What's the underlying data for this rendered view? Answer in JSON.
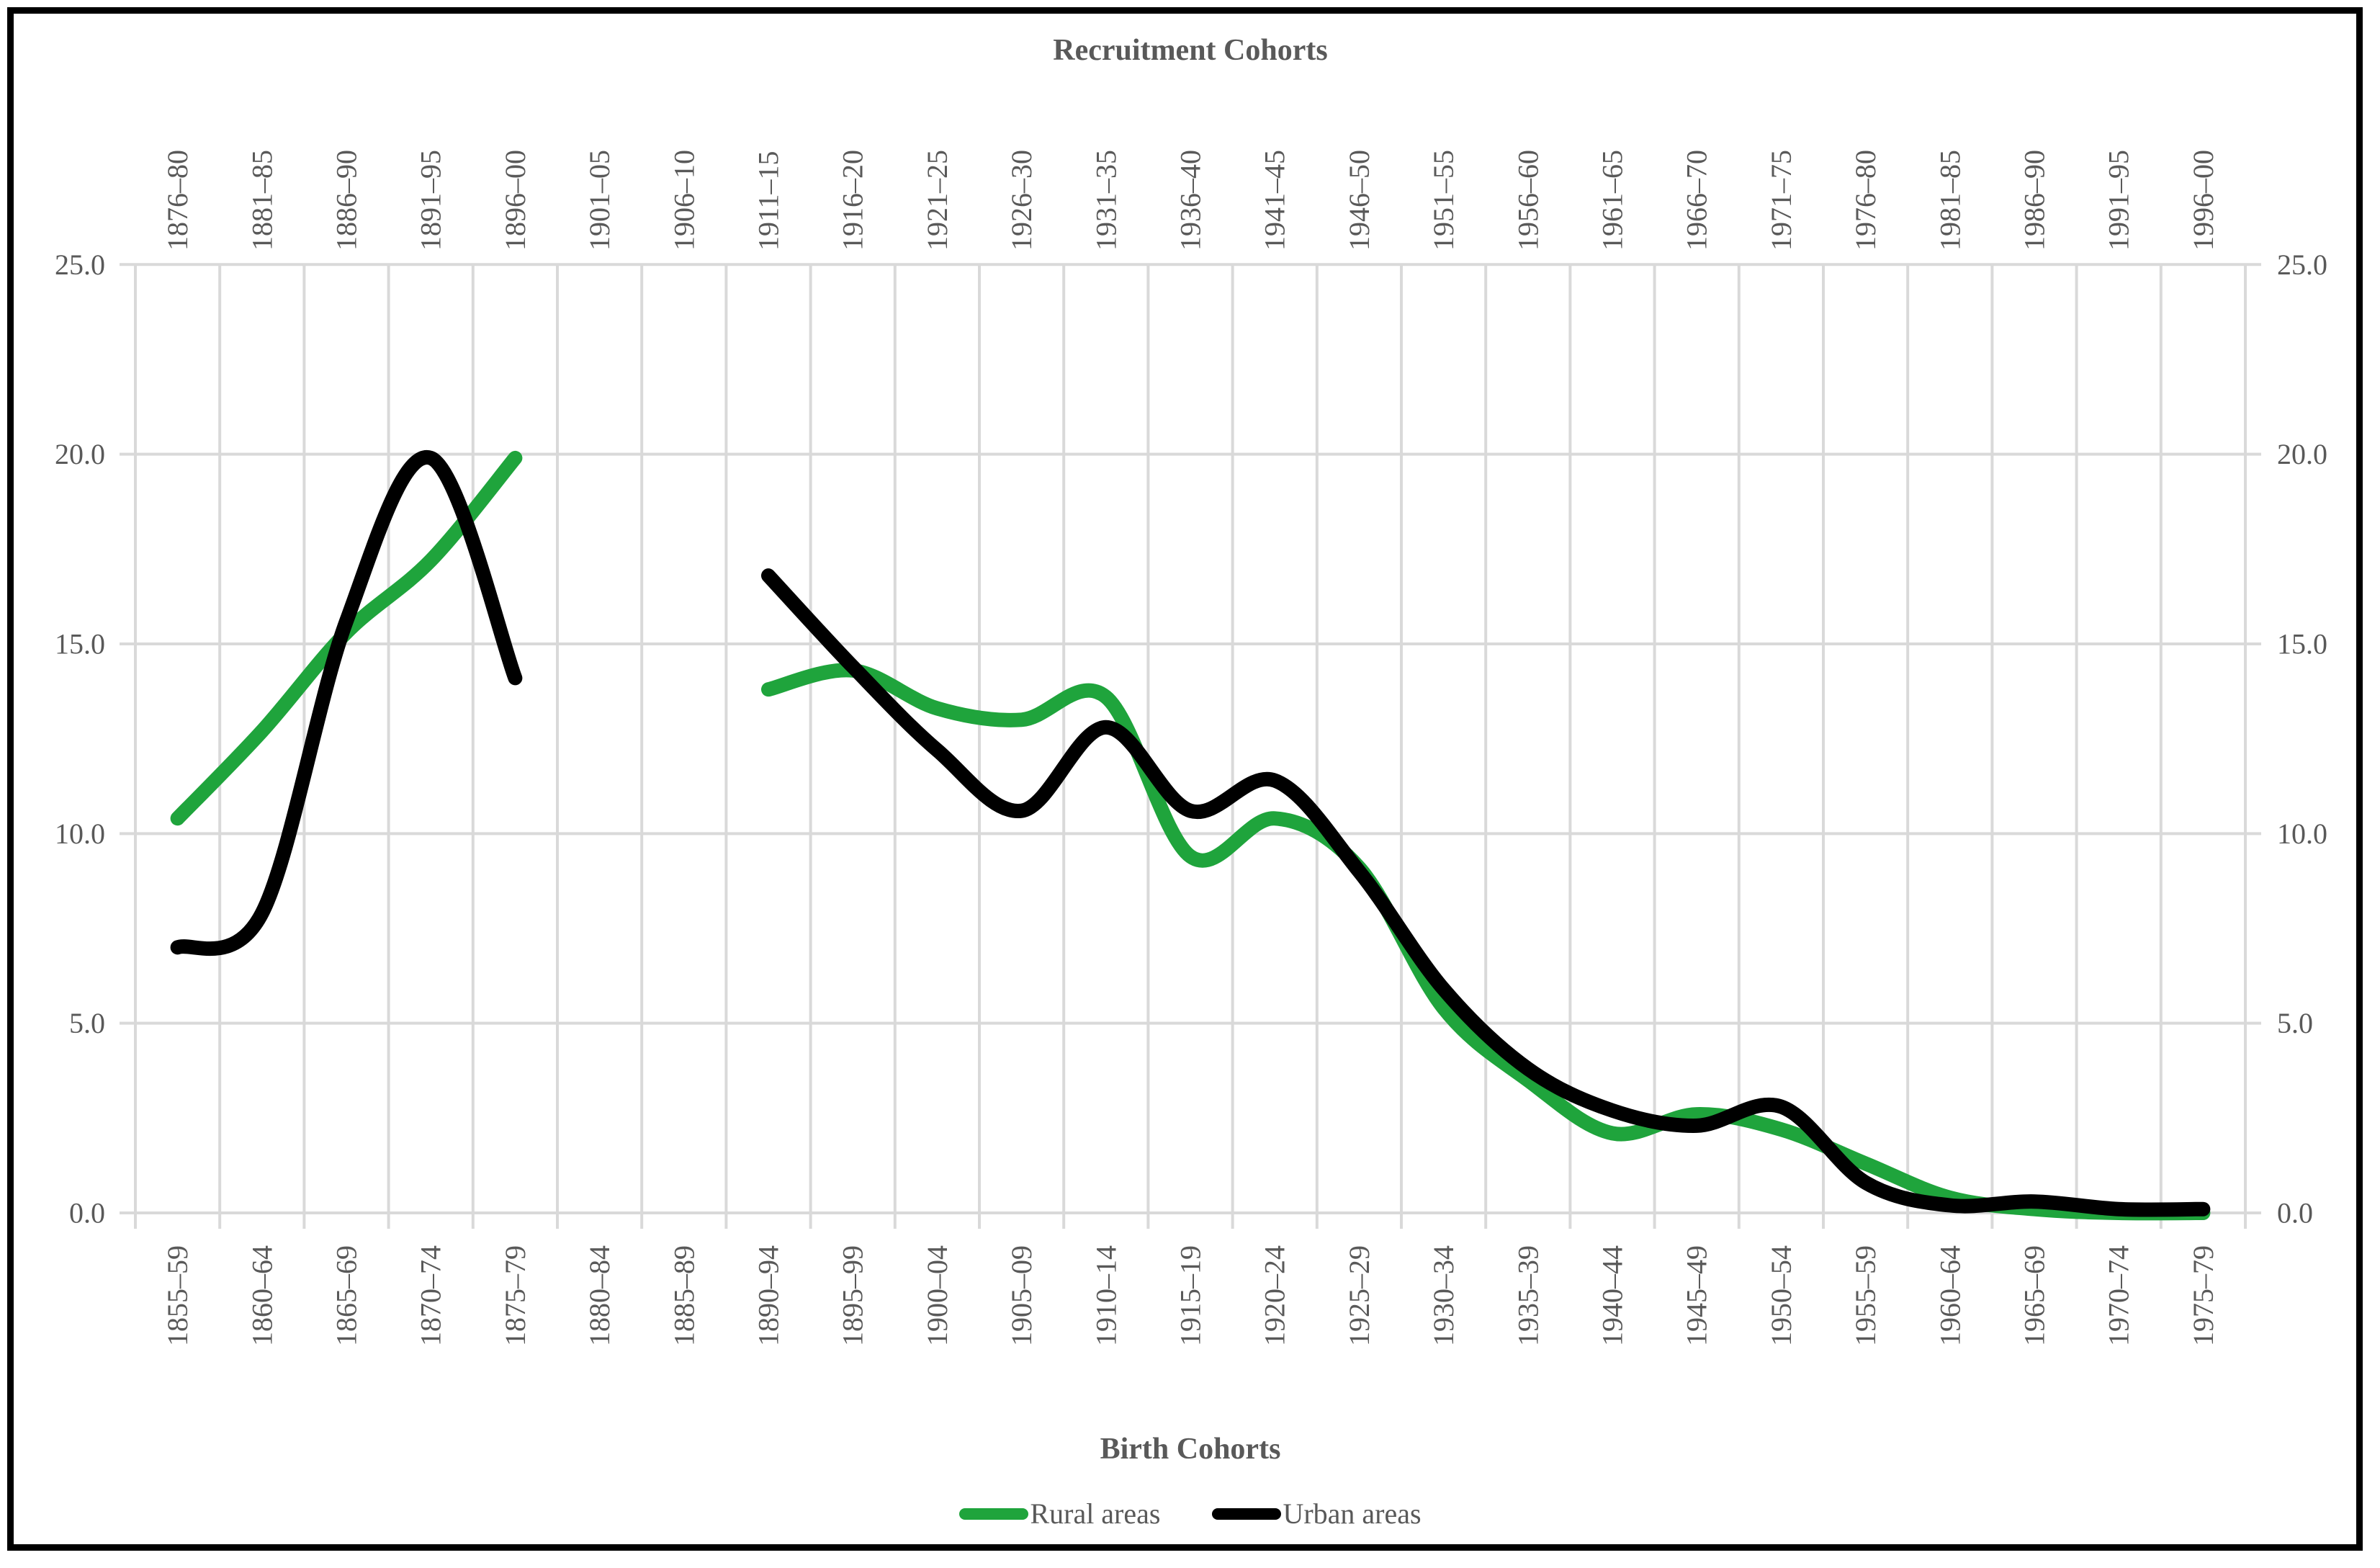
{
  "chart_data": {
    "type": "line",
    "smooth": true,
    "title_top": "Recruitment Cohorts",
    "title_bottom": "Birth Cohorts",
    "recruitment_cohorts": [
      "1876–80",
      "1881–85",
      "1886–90",
      "1891–95",
      "1896–00",
      "1901–05",
      "1906–10",
      "1911–15",
      "1916–20",
      "1921–25",
      "1926–30",
      "1931–35",
      "1936–40",
      "1941–45",
      "1946–50",
      "1951–55",
      "1956–60",
      "1961–65",
      "1966–70",
      "1971–75",
      "1976–80",
      "1981–85",
      "1986–90",
      "1991–95",
      "1996–00"
    ],
    "birth_cohorts": [
      "1855–59",
      "1860–64",
      "1865–69",
      "1870–74",
      "1875–79",
      "1880–84",
      "1885–89",
      "1890–94",
      "1895–99",
      "1900–04",
      "1905–09",
      "1910–14",
      "1915–19",
      "1920–24",
      "1925–29",
      "1930–34",
      "1935–39",
      "1940–44",
      "1945–49",
      "1950–54",
      "1955–59",
      "1960–64",
      "1965–69",
      "1970–74",
      "1975–79"
    ],
    "ylim": [
      0,
      25
    ],
    "yticks": [
      0,
      5,
      10,
      15,
      20,
      25
    ],
    "ytick_labels": [
      "0.0",
      "5.0",
      "10.0",
      "15.0",
      "20.0",
      "25.0"
    ],
    "grid": true,
    "legend_position": "bottom-center",
    "series": [
      {
        "name": "Rural areas",
        "color": "#1FA43C",
        "values": [
          10.4,
          12.7,
          15.3,
          17.2,
          19.9,
          null,
          null,
          13.8,
          14.3,
          13.3,
          13.0,
          13.6,
          9.4,
          10.4,
          9.1,
          5.4,
          3.5,
          2.1,
          2.6,
          2.2,
          1.3,
          0.4,
          0.1,
          0.0,
          0.0
        ]
      },
      {
        "name": "Urban areas",
        "color": "#000000",
        "values": [
          7.0,
          7.9,
          15.6,
          19.9,
          14.1,
          null,
          null,
          16.8,
          14.4,
          12.2,
          10.6,
          12.8,
          10.6,
          11.4,
          9.0,
          5.9,
          3.8,
          2.7,
          2.3,
          2.8,
          0.8,
          0.2,
          0.3,
          0.1,
          0.1
        ]
      }
    ],
    "gridline_color": "#D9D9D9",
    "text_color": "#595959"
  }
}
